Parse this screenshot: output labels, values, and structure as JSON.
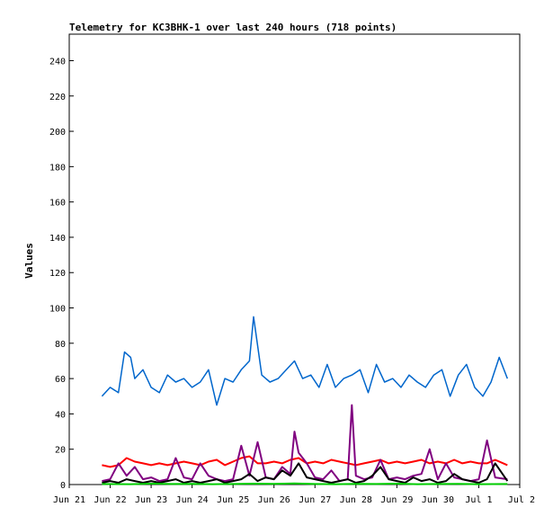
{
  "chart_data": {
    "type": "line",
    "title": "Telemetry for KC3BHK-1 over last 240 hours (718 points)",
    "xlabel": "",
    "ylabel": "Values",
    "ylim": [
      0,
      255
    ],
    "y_ticks": [
      0,
      20,
      40,
      60,
      80,
      100,
      120,
      140,
      160,
      180,
      200,
      220,
      240
    ],
    "x_ticks": [
      {
        "label": "Jun 21",
        "day": 21
      },
      {
        "label": "Jun 22",
        "day": 22
      },
      {
        "label": "Jun 23",
        "day": 23
      },
      {
        "label": "Jun 24",
        "day": 24
      },
      {
        "label": "Jun 25",
        "day": 25
      },
      {
        "label": "Jun 26",
        "day": 26
      },
      {
        "label": "Jun 27",
        "day": 27
      },
      {
        "label": "Jun 28",
        "day": 28
      },
      {
        "label": "Jun 29",
        "day": 29
      },
      {
        "label": "Jun 30",
        "day": 30
      },
      {
        "label": "Jul 1",
        "day": 31
      },
      {
        "label": "Jul 2",
        "day": 32
      }
    ],
    "xlim_day": [
      21,
      32
    ],
    "grid": false,
    "series": [
      {
        "color": "#0066cc",
        "x": [
          21.8,
          22.0,
          22.2,
          22.35,
          22.5,
          22.6,
          22.8,
          23.0,
          23.2,
          23.4,
          23.6,
          23.8,
          24.0,
          24.2,
          24.4,
          24.6,
          24.8,
          25.0,
          25.2,
          25.4,
          25.5,
          25.7,
          25.9,
          26.1,
          26.3,
          26.5,
          26.7,
          26.9,
          27.1,
          27.3,
          27.5,
          27.7,
          27.9,
          28.1,
          28.3,
          28.5,
          28.7,
          28.9,
          29.1,
          29.3,
          29.5,
          29.7,
          29.9,
          30.1,
          30.3,
          30.5,
          30.7,
          30.9,
          31.1,
          31.3,
          31.5,
          31.7
        ],
        "y": [
          50,
          55,
          52,
          75,
          72,
          60,
          65,
          55,
          52,
          62,
          58,
          60,
          55,
          58,
          65,
          45,
          60,
          58,
          65,
          70,
          95,
          62,
          58,
          60,
          65,
          70,
          60,
          62,
          55,
          68,
          55,
          60,
          62,
          65,
          52,
          68,
          58,
          60,
          55,
          62,
          58,
          55,
          62,
          65,
          50,
          62,
          68,
          55,
          50,
          58,
          72,
          60
        ]
      },
      {
        "color": "#ff0000",
        "x": [
          21.8,
          22.0,
          22.2,
          22.4,
          22.6,
          22.8,
          23.0,
          23.2,
          23.4,
          23.6,
          23.8,
          24.0,
          24.2,
          24.4,
          24.6,
          24.8,
          25.0,
          25.2,
          25.4,
          25.6,
          25.8,
          26.0,
          26.2,
          26.4,
          26.6,
          26.8,
          27.0,
          27.2,
          27.4,
          27.6,
          27.8,
          28.0,
          28.2,
          28.4,
          28.6,
          28.8,
          29.0,
          29.2,
          29.4,
          29.6,
          29.8,
          30.0,
          30.2,
          30.4,
          30.6,
          30.8,
          31.0,
          31.2,
          31.4,
          31.7
        ],
        "y": [
          11,
          10,
          11,
          15,
          13,
          12,
          11,
          12,
          11,
          12,
          13,
          12,
          11,
          13,
          14,
          11,
          13,
          15,
          16,
          12,
          12,
          13,
          12,
          14,
          15,
          12,
          13,
          12,
          14,
          13,
          12,
          11,
          12,
          13,
          14,
          12,
          13,
          12,
          13,
          14,
          12,
          13,
          12,
          14,
          12,
          13,
          12,
          12,
          14,
          11
        ]
      },
      {
        "color": "#800080",
        "x": [
          21.8,
          22.0,
          22.2,
          22.4,
          22.6,
          22.8,
          23.0,
          23.2,
          23.4,
          23.6,
          23.8,
          24.0,
          24.2,
          24.4,
          24.6,
          24.8,
          25.0,
          25.2,
          25.4,
          25.6,
          25.8,
          26.0,
          26.2,
          26.4,
          26.5,
          26.6,
          26.8,
          27.0,
          27.2,
          27.4,
          27.6,
          27.8,
          27.9,
          28.0,
          28.2,
          28.4,
          28.6,
          28.8,
          29.0,
          29.2,
          29.4,
          29.6,
          29.8,
          30.0,
          30.2,
          30.4,
          30.6,
          30.8,
          31.0,
          31.2,
          31.4,
          31.7
        ],
        "y": [
          2,
          3,
          12,
          5,
          10,
          3,
          4,
          2,
          3,
          15,
          4,
          3,
          12,
          5,
          3,
          2,
          3,
          22,
          5,
          24,
          4,
          3,
          10,
          6,
          30,
          18,
          12,
          4,
          3,
          8,
          2,
          3,
          45,
          5,
          3,
          4,
          14,
          3,
          4,
          3,
          5,
          6,
          20,
          3,
          12,
          4,
          3,
          2,
          3,
          25,
          4,
          3
        ]
      },
      {
        "color": "#000000",
        "x": [
          21.8,
          22.0,
          22.2,
          22.4,
          22.6,
          22.8,
          23.0,
          23.2,
          23.4,
          23.6,
          23.8,
          24.0,
          24.2,
          24.4,
          24.6,
          24.8,
          25.0,
          25.2,
          25.4,
          25.6,
          25.8,
          26.0,
          26.2,
          26.4,
          26.6,
          26.8,
          27.0,
          27.2,
          27.4,
          27.6,
          27.8,
          28.0,
          28.2,
          28.4,
          28.6,
          28.8,
          29.0,
          29.2,
          29.4,
          29.6,
          29.8,
          30.0,
          30.2,
          30.4,
          30.6,
          30.8,
          31.0,
          31.2,
          31.4,
          31.7
        ],
        "y": [
          1,
          2,
          1,
          3,
          2,
          1,
          2,
          1,
          2,
          3,
          1,
          2,
          1,
          2,
          3,
          1,
          2,
          3,
          6,
          2,
          4,
          3,
          8,
          5,
          12,
          4,
          3,
          2,
          1,
          2,
          3,
          1,
          2,
          5,
          10,
          3,
          2,
          1,
          4,
          2,
          3,
          1,
          2,
          6,
          3,
          2,
          1,
          3,
          12,
          2
        ]
      },
      {
        "color": "#00cc00",
        "x": [
          21.8,
          22.5,
          23.0,
          23.5,
          24.0,
          24.5,
          25.0,
          25.5,
          26.0,
          26.5,
          27.0,
          27.5,
          28.0,
          28.5,
          29.0,
          29.5,
          30.0,
          30.5,
          31.0,
          31.7
        ],
        "y": [
          0.3,
          0.2,
          0.5,
          0.3,
          0.4,
          0.2,
          0.3,
          0.5,
          0.4,
          0.6,
          0.3,
          0.2,
          0.4,
          0.3,
          0.5,
          0.2,
          0.3,
          0.4,
          0.2,
          0.3
        ]
      }
    ]
  }
}
